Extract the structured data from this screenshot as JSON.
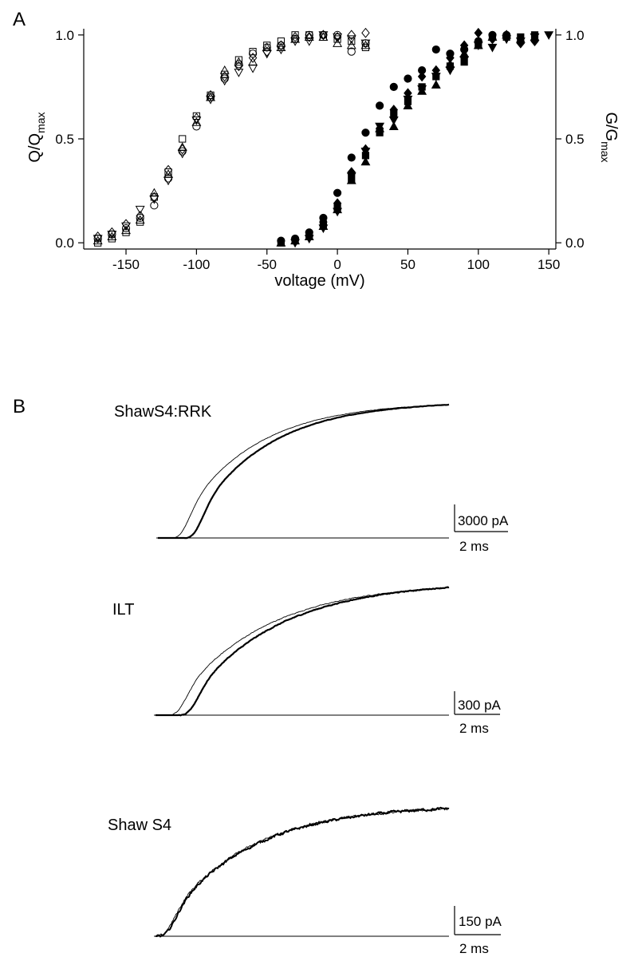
{
  "panel_a": {
    "label": "A",
    "chart_data": {
      "type": "scatter",
      "title": "",
      "xlabel": "voltage (mV)",
      "ylabel_left": "Q/Qmax",
      "ylabel_left_main": "Q/Q",
      "ylabel_left_sub": "max",
      "ylabel_right": "G/Gmax",
      "ylabel_right_main": "G/G",
      "ylabel_right_sub": "max",
      "xlim": [
        -180,
        155
      ],
      "ylim": [
        -0.03,
        1.03
      ],
      "x_ticks": [
        -150,
        -100,
        -50,
        0,
        50,
        100,
        150
      ],
      "x_tick_labels": [
        "-150",
        "-100",
        "-50",
        "0",
        "50",
        "100",
        "150"
      ],
      "y_ticks": [
        0,
        0.5,
        1
      ],
      "y_tick_labels": [
        "0.0",
        "0.5",
        "1.0"
      ],
      "grid": false,
      "legend": "none",
      "series": [
        {
          "marker": "open-square",
          "filled": false,
          "x": [
            -170,
            -160,
            -150,
            -140,
            -130,
            -120,
            -110,
            -100,
            -90,
            -80,
            -70,
            -60,
            -50,
            -40,
            -30,
            -20,
            -10,
            0,
            10,
            20
          ],
          "y": [
            0.0,
            0.02,
            0.05,
            0.1,
            0.22,
            0.34,
            0.5,
            0.61,
            0.71,
            0.81,
            0.88,
            0.92,
            0.95,
            0.97,
            1.0,
            1.0,
            0.99,
            0.98,
            0.97,
            0.94
          ]
        },
        {
          "marker": "open-circle",
          "filled": false,
          "x": [
            -170,
            -160,
            -150,
            -140,
            -130,
            -120,
            -110,
            -100,
            -90,
            -80,
            -70,
            -60,
            -50,
            -40,
            -30,
            -20,
            -10,
            0,
            10,
            20
          ],
          "y": [
            0.02,
            0.04,
            0.07,
            0.12,
            0.18,
            0.31,
            0.44,
            0.56,
            0.7,
            0.79,
            0.86,
            0.91,
            0.94,
            0.95,
            0.98,
            1.0,
            1.0,
            1.0,
            0.92,
            0.96
          ]
        },
        {
          "marker": "open-triangle-up",
          "filled": false,
          "x": [
            -170,
            -160,
            -150,
            -140,
            -130,
            -120,
            -110,
            -100,
            -90,
            -80,
            -70,
            -60,
            -50,
            -40,
            -30,
            -20,
            -10,
            0,
            10,
            20
          ],
          "y": [
            0.01,
            0.03,
            0.06,
            0.11,
            0.24,
            0.33,
            0.46,
            0.58,
            0.7,
            0.83,
            0.87,
            0.87,
            0.94,
            0.94,
            0.98,
            0.99,
            0.99,
            0.96,
            0.95,
            0.95
          ]
        },
        {
          "marker": "open-triangle-down",
          "filled": false,
          "x": [
            -170,
            -160,
            -150,
            -140,
            -130,
            -120,
            -110,
            -100,
            -90,
            -80,
            -70,
            -60,
            -50,
            -40,
            -30,
            -20,
            -10,
            0,
            10,
            20
          ],
          "y": [
            0.02,
            0.04,
            0.08,
            0.16,
            0.21,
            0.3,
            0.43,
            0.59,
            0.69,
            0.78,
            0.82,
            0.84,
            0.91,
            0.93,
            0.97,
            0.97,
            1.0,
            0.99,
            0.98,
            0.96
          ]
        },
        {
          "marker": "open-diamond",
          "filled": false,
          "x": [
            -170,
            -160,
            -150,
            -140,
            -130,
            -120,
            -110,
            -100,
            -90,
            -80,
            -70,
            -60,
            -50,
            -40,
            -30,
            -20,
            -10,
            0,
            10,
            20
          ],
          "y": [
            0.03,
            0.05,
            0.09,
            0.13,
            0.22,
            0.35,
            0.45,
            0.6,
            0.71,
            0.8,
            0.85,
            0.89,
            0.92,
            0.95,
            0.99,
            0.99,
            1.0,
            0.99,
            1.0,
            1.01
          ]
        },
        {
          "marker": "filled-circle",
          "filled": true,
          "x": [
            -40,
            -30,
            -20,
            -10,
            0,
            10,
            20,
            30,
            40,
            50,
            60,
            70,
            80,
            90,
            100,
            110,
            120
          ],
          "y": [
            0.01,
            0.02,
            0.05,
            0.12,
            0.24,
            0.41,
            0.53,
            0.66,
            0.75,
            0.79,
            0.83,
            0.93,
            0.91,
            0.93,
            0.97,
            1.0,
            1.0
          ]
        },
        {
          "marker": "filled-square",
          "filled": true,
          "x": [
            -40,
            -30,
            -20,
            -10,
            0,
            10,
            20,
            30,
            40,
            50,
            60,
            70,
            80,
            90,
            100,
            110,
            120,
            130,
            140
          ],
          "y": [
            0.0,
            0.01,
            0.03,
            0.09,
            0.17,
            0.31,
            0.42,
            0.53,
            0.62,
            0.68,
            0.75,
            0.8,
            0.85,
            0.87,
            0.95,
            0.99,
            0.99,
            0.99,
            1.0
          ]
        },
        {
          "marker": "filled-triangle-up",
          "filled": true,
          "x": [
            -40,
            -30,
            -20,
            -10,
            0,
            10,
            20,
            30,
            40,
            50,
            60,
            70,
            80,
            90,
            100,
            110,
            120,
            130,
            140
          ],
          "y": [
            0.0,
            0.01,
            0.03,
            0.08,
            0.16,
            0.3,
            0.39,
            0.55,
            0.56,
            0.66,
            0.73,
            0.76,
            0.86,
            0.91,
            0.95,
            0.99,
            1.0,
            0.98,
            0.99
          ]
        },
        {
          "marker": "filled-triangle-down",
          "filled": true,
          "x": [
            -30,
            -20,
            -10,
            0,
            10,
            20,
            30,
            40,
            50,
            60,
            70,
            80,
            90,
            100,
            110,
            120,
            130,
            140,
            150
          ],
          "y": [
            0.0,
            0.02,
            0.07,
            0.15,
            0.32,
            0.44,
            0.56,
            0.59,
            0.69,
            0.74,
            0.8,
            0.83,
            0.88,
            0.95,
            0.94,
            0.98,
            0.97,
            0.99,
            1.0
          ]
        },
        {
          "marker": "filled-diamond",
          "filled": true,
          "x": [
            -10,
            0,
            10,
            20,
            30,
            40,
            50,
            60,
            70,
            80,
            90,
            100,
            110,
            120,
            130,
            140
          ],
          "y": [
            0.1,
            0.19,
            0.34,
            0.45,
            0.55,
            0.64,
            0.72,
            0.8,
            0.83,
            0.89,
            0.95,
            1.01,
            0.98,
            1.0,
            0.96,
            0.97
          ]
        }
      ]
    }
  },
  "panel_b": {
    "label": "B",
    "traces": [
      {
        "name": "ShawS4:RRK",
        "scale_current": "3000 pA",
        "scale_time": "2 ms",
        "thin_delay": 0.045,
        "thick_delay": 0.09,
        "noise": 0.002
      },
      {
        "name": "ILT",
        "scale_current": "300 pA",
        "scale_time": "2 ms",
        "thin_delay": 0.04,
        "thick_delay": 0.08,
        "noise": 0.004
      },
      {
        "name": "Shaw S4",
        "scale_current": "150 pA",
        "scale_time": "2 ms",
        "thin_delay": 0.0,
        "thick_delay": 0.005,
        "noise": 0.012
      }
    ]
  }
}
